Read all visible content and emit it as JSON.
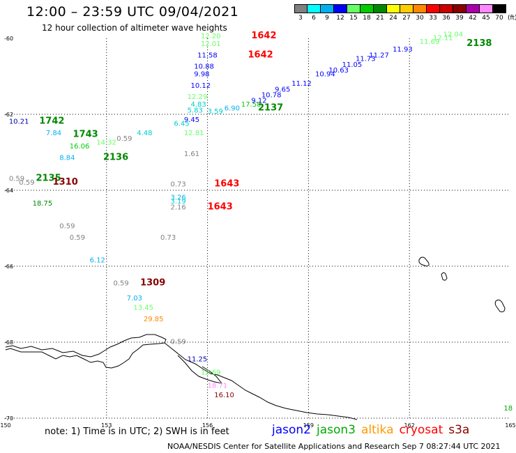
{
  "title": "12:00 – 23:59 UTC 09/04/2021",
  "subtitle": "12 hour collection of altimeter wave heights",
  "note": "note:  1) Time is in UTC;  2) SWH is in feet",
  "credit": "NOAA/NESDIS Center for Satellite Applications and Research    Sep  7 08:27:44 UTC 2021",
  "colorbar": {
    "unit": "(ft)",
    "labels": [
      "3",
      "6",
      "9",
      "12",
      "15",
      "18",
      "21",
      "24",
      "27",
      "30",
      "33",
      "36",
      "39",
      "42",
      "45",
      "70"
    ],
    "colors": [
      "#808080",
      "#00ffff",
      "#00b0f0",
      "#0000ff",
      "#66ff66",
      "#00cc00",
      "#008800",
      "#ffff00",
      "#ffcc00",
      "#ff8800",
      "#ff0000",
      "#cc0000",
      "#880000",
      "#aa00aa",
      "#ff88ff",
      "#000000"
    ]
  },
  "satellites": [
    {
      "name": "jason2",
      "color": "#0000ff"
    },
    {
      "name": "jason3",
      "color": "#00aa00"
    },
    {
      "name": "altika",
      "color": "#ff9900"
    },
    {
      "name": "cryosat",
      "color": "#ff0000"
    },
    {
      "name": "s3a",
      "color": "#880000"
    }
  ],
  "axes": {
    "lon_labels": [
      "150",
      "153",
      "156",
      "159",
      "162",
      "165"
    ],
    "lat_labels": [
      "-60",
      "-62",
      "-64",
      "-66",
      "-68",
      "-70"
    ]
  },
  "observations": [
    {
      "text": "12.20",
      "lon": 155.8,
      "lat": -60.0,
      "color": "#66ff66",
      "size": 10
    },
    {
      "text": "12.01",
      "lon": 155.8,
      "lat": -60.2,
      "color": "#66ff66",
      "size": 10
    },
    {
      "text": "11.58",
      "lon": 155.7,
      "lat": -60.5,
      "color": "#0000ff",
      "size": 10
    },
    {
      "text": "10.88",
      "lon": 155.6,
      "lat": -60.8,
      "color": "#0000ff",
      "size": 10
    },
    {
      "text": "9.98",
      "lon": 155.6,
      "lat": -61.0,
      "color": "#0000ff",
      "size": 10
    },
    {
      "text": "10.12",
      "lon": 155.5,
      "lat": -61.3,
      "color": "#0000ff",
      "size": 10
    },
    {
      "text": "12.29",
      "lon": 155.4,
      "lat": -61.6,
      "color": "#66ff66",
      "size": 10
    },
    {
      "text": "4.83",
      "lon": 155.5,
      "lat": -61.8,
      "color": "#00cccc",
      "size": 10
    },
    {
      "text": "5.83",
      "lon": 155.4,
      "lat": -61.95,
      "color": "#00cccc",
      "size": 10
    },
    {
      "text": "3.59",
      "lon": 156.0,
      "lat": -61.98,
      "color": "#00cccc",
      "size": 10
    },
    {
      "text": "6.90",
      "lon": 156.5,
      "lat": -61.9,
      "color": "#00b0f0",
      "size": 10
    },
    {
      "text": "17.58",
      "lon": 157.0,
      "lat": -61.8,
      "color": "#00cc00",
      "size": 10
    },
    {
      "text": "9.12",
      "lon": 157.3,
      "lat": -61.7,
      "color": "#0000ff",
      "size": 10
    },
    {
      "text": "10.78",
      "lon": 157.6,
      "lat": -61.55,
      "color": "#0000ff",
      "size": 10
    },
    {
      "text": "9.65",
      "lon": 158.0,
      "lat": -61.4,
      "color": "#0000ff",
      "size": 10
    },
    {
      "text": "11.12",
      "lon": 158.5,
      "lat": -61.25,
      "color": "#0000ff",
      "size": 10
    },
    {
      "text": "10.94",
      "lon": 159.2,
      "lat": -61.0,
      "color": "#0000ff",
      "size": 10
    },
    {
      "text": "10.63",
      "lon": 159.6,
      "lat": -60.9,
      "color": "#0000ff",
      "size": 10
    },
    {
      "text": "11.05",
      "lon": 160.0,
      "lat": -60.75,
      "color": "#0000ff",
      "size": 10
    },
    {
      "text": "11.73",
      "lon": 160.4,
      "lat": -60.6,
      "color": "#0000ff",
      "size": 10
    },
    {
      "text": "11.27",
      "lon": 160.8,
      "lat": -60.5,
      "color": "#0000ff",
      "size": 10
    },
    {
      "text": "11.93",
      "lon": 161.5,
      "lat": -60.35,
      "color": "#0000ff",
      "size": 10
    },
    {
      "text": "11.69",
      "lon": 162.3,
      "lat": -60.15,
      "color": "#66ff66",
      "size": 10
    },
    {
      "text": "12.11",
      "lon": 162.7,
      "lat": -60.05,
      "color": "#66ff66",
      "size": 10
    },
    {
      "text": "12.04",
      "lon": 163.0,
      "lat": -59.95,
      "color": "#66ff66",
      "size": 10
    },
    {
      "text": "9.45",
      "lon": 155.3,
      "lat": -62.2,
      "color": "#0000ff",
      "size": 10
    },
    {
      "text": "6.45",
      "lon": 155.0,
      "lat": -62.3,
      "color": "#00cccc",
      "size": 10
    },
    {
      "text": "12.81",
      "lon": 155.3,
      "lat": -62.55,
      "color": "#66ff66",
      "size": 10
    },
    {
      "text": "4.48",
      "lon": 153.9,
      "lat": -62.55,
      "color": "#00cccc",
      "size": 10
    },
    {
      "text": "0.59",
      "lon": 153.3,
      "lat": -62.7,
      "color": "#808080",
      "size": 10
    },
    {
      "text": "14.32",
      "lon": 152.7,
      "lat": -62.8,
      "color": "#66ff66",
      "size": 10
    },
    {
      "text": "16.06",
      "lon": 151.9,
      "lat": -62.9,
      "color": "#00cc00",
      "size": 10
    },
    {
      "text": "1.61",
      "lon": 155.3,
      "lat": -63.1,
      "color": "#808080",
      "size": 10
    },
    {
      "text": "10.21",
      "lon": 150.1,
      "lat": -62.25,
      "color": "#0000aa",
      "size": 10
    },
    {
      "text": "7.84",
      "lon": 151.2,
      "lat": -62.55,
      "color": "#00b0f0",
      "size": 10
    },
    {
      "text": "8.84",
      "lon": 151.6,
      "lat": -63.2,
      "color": "#00b0f0",
      "size": 10
    },
    {
      "text": "0.59",
      "lon": 150.1,
      "lat": -63.75,
      "color": "#808080",
      "size": 10
    },
    {
      "text": "0.59",
      "lon": 150.4,
      "lat": -63.85,
      "color": "#808080",
      "size": 10
    },
    {
      "text": "0.73",
      "lon": 154.9,
      "lat": -63.9,
      "color": "#808080",
      "size": 10
    },
    {
      "text": "3.26",
      "lon": 154.9,
      "lat": -64.25,
      "color": "#00b0f0",
      "size": 10
    },
    {
      "text": "3.19",
      "lon": 154.9,
      "lat": -64.35,
      "color": "#00cccc",
      "size": 10
    },
    {
      "text": "2.16",
      "lon": 154.9,
      "lat": -64.5,
      "color": "#808080",
      "size": 10
    },
    {
      "text": "18.75",
      "lon": 150.8,
      "lat": -64.4,
      "color": "#008800",
      "size": 10
    },
    {
      "text": "0.59",
      "lon": 151.6,
      "lat": -65.0,
      "color": "#808080",
      "size": 10
    },
    {
      "text": "0.59",
      "lon": 151.9,
      "lat": -65.3,
      "color": "#808080",
      "size": 10
    },
    {
      "text": "0.73",
      "lon": 154.6,
      "lat": -65.3,
      "color": "#808080",
      "size": 10
    },
    {
      "text": "6.12",
      "lon": 152.5,
      "lat": -65.9,
      "color": "#00b0f0",
      "size": 10
    },
    {
      "text": "0.59",
      "lon": 153.2,
      "lat": -66.5,
      "color": "#808080",
      "size": 10
    },
    {
      "text": "7.03",
      "lon": 153.6,
      "lat": -66.9,
      "color": "#00b0f0",
      "size": 10
    },
    {
      "text": "13.45",
      "lon": 153.8,
      "lat": -67.15,
      "color": "#66ff66",
      "size": 10
    },
    {
      "text": "29.85",
      "lon": 154.1,
      "lat": -67.45,
      "color": "#ff8800",
      "size": 10
    },
    {
      "text": "0.59",
      "lon": 154.9,
      "lat": -68.05,
      "color": "#808080",
      "size": 10
    },
    {
      "text": "11.25",
      "lon": 155.4,
      "lat": -68.5,
      "color": "#0000aa",
      "size": 10
    },
    {
      "text": "12.69",
      "lon": 155.8,
      "lat": -68.85,
      "color": "#66ff66",
      "size": 10
    },
    {
      "text": "18.71",
      "lon": 156.0,
      "lat": -69.2,
      "color": "#ff88ff",
      "size": 10
    },
    {
      "text": "16.10",
      "lon": 156.2,
      "lat": -69.45,
      "color": "#880000",
      "size": 10
    },
    {
      "text": "18",
      "lon": 164.8,
      "lat": -69.8,
      "color": "#00aa00",
      "size": 10
    },
    {
      "text": "1642",
      "lon": 157.3,
      "lat": -60.0,
      "color": "#ff0000",
      "size": 13,
      "bold": true
    },
    {
      "text": "1642",
      "lon": 157.2,
      "lat": -60.5,
      "color": "#ff0000",
      "size": 13,
      "bold": true
    },
    {
      "text": "2138",
      "lon": 163.7,
      "lat": -60.2,
      "color": "#008800",
      "size": 13,
      "bold": true
    },
    {
      "text": "2137",
      "lon": 157.5,
      "lat": -61.9,
      "color": "#008800",
      "size": 13,
      "bold": true
    },
    {
      "text": "1742",
      "lon": 151.0,
      "lat": -62.25,
      "color": "#008800",
      "size": 13,
      "bold": true
    },
    {
      "text": "1743",
      "lon": 152.0,
      "lat": -62.6,
      "color": "#008800",
      "size": 13,
      "bold": true
    },
    {
      "text": "2136",
      "lon": 152.9,
      "lat": -63.2,
      "color": "#008800",
      "size": 13,
      "bold": true
    },
    {
      "text": "2135",
      "lon": 150.9,
      "lat": -63.75,
      "color": "#008800",
      "size": 13,
      "bold": true
    },
    {
      "text": "1310",
      "lon": 151.4,
      "lat": -63.85,
      "color": "#880000",
      "size": 13,
      "bold": true
    },
    {
      "text": "1643",
      "lon": 156.2,
      "lat": -63.9,
      "color": "#ff0000",
      "size": 13,
      "bold": true
    },
    {
      "text": "1643",
      "lon": 156.0,
      "lat": -64.5,
      "color": "#ff0000",
      "size": 13,
      "bold": true
    },
    {
      "text": "1309",
      "lon": 154.0,
      "lat": -66.5,
      "color": "#880000",
      "size": 13,
      "bold": true
    }
  ]
}
